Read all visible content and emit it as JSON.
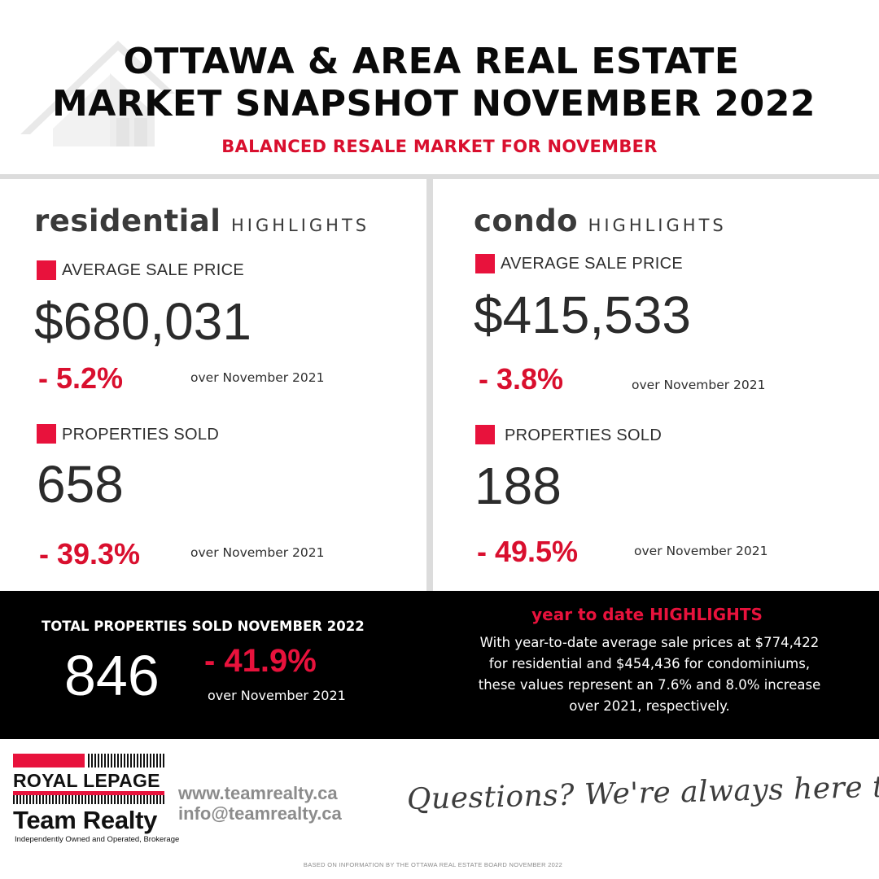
{
  "header": {
    "title_line1": "OTTAWA & AREA REAL ESTATE",
    "title_line2": "MARKET SNAPSHOT NOVEMBER 2022",
    "subtitle": "BALANCED RESALE MARKET FOR NOVEMBER",
    "watermark_icon": "house-icon"
  },
  "residential": {
    "heading_big": "residential",
    "heading_small": "HIGHLIGHTS",
    "avg_price_label": "AVERAGE SALE PRICE",
    "avg_price": "$680,031",
    "avg_price_change": "- 5.2%",
    "avg_price_over": "over November 2021",
    "sold_label": "PROPERTIES SOLD",
    "sold": "658",
    "sold_change": "- 39.3%",
    "sold_over": "over November 2021"
  },
  "condo": {
    "heading_big": "condo",
    "heading_small": "HIGHLIGHTS",
    "avg_price_label": "AVERAGE SALE PRICE",
    "avg_price": "$415,533",
    "avg_price_change": "- 3.8%",
    "avg_price_over": "over November 2021",
    "sold_label": "PROPERTIES SOLD",
    "sold": "188",
    "sold_change": "- 49.5%",
    "sold_over": "over November 2021"
  },
  "totals": {
    "title": "TOTAL PROPERTIES SOLD NOVEMBER 2022",
    "value": "846",
    "change": "- 41.9%",
    "over": "over November 2021"
  },
  "ytd": {
    "title": "year to date HIGHLIGHTS",
    "lines": [
      "With year-to-date average sale prices at $774,422",
      "for residential and $454,436 for condominiums,",
      "these values represent an 7.6% and 8.0% increase",
      "over 2021, respectively."
    ]
  },
  "footer": {
    "logo_line1": "ROYAL LEPAGE",
    "logo_line2": "Team Realty",
    "logo_tagline": "Independently Owned and Operated, Brokerage",
    "website": "www.teamrealty.ca",
    "email": "info@teamrealty.ca",
    "script_text": "Questions? We're always here to help",
    "source": "BASED ON INFORMATION BY THE OTTAWA REAL ESTATE BOARD NOVEMBER 2022"
  },
  "colors": {
    "accent_red": "#e8123c",
    "band_black": "#000000",
    "divider_gray": "#dcdcdc"
  }
}
